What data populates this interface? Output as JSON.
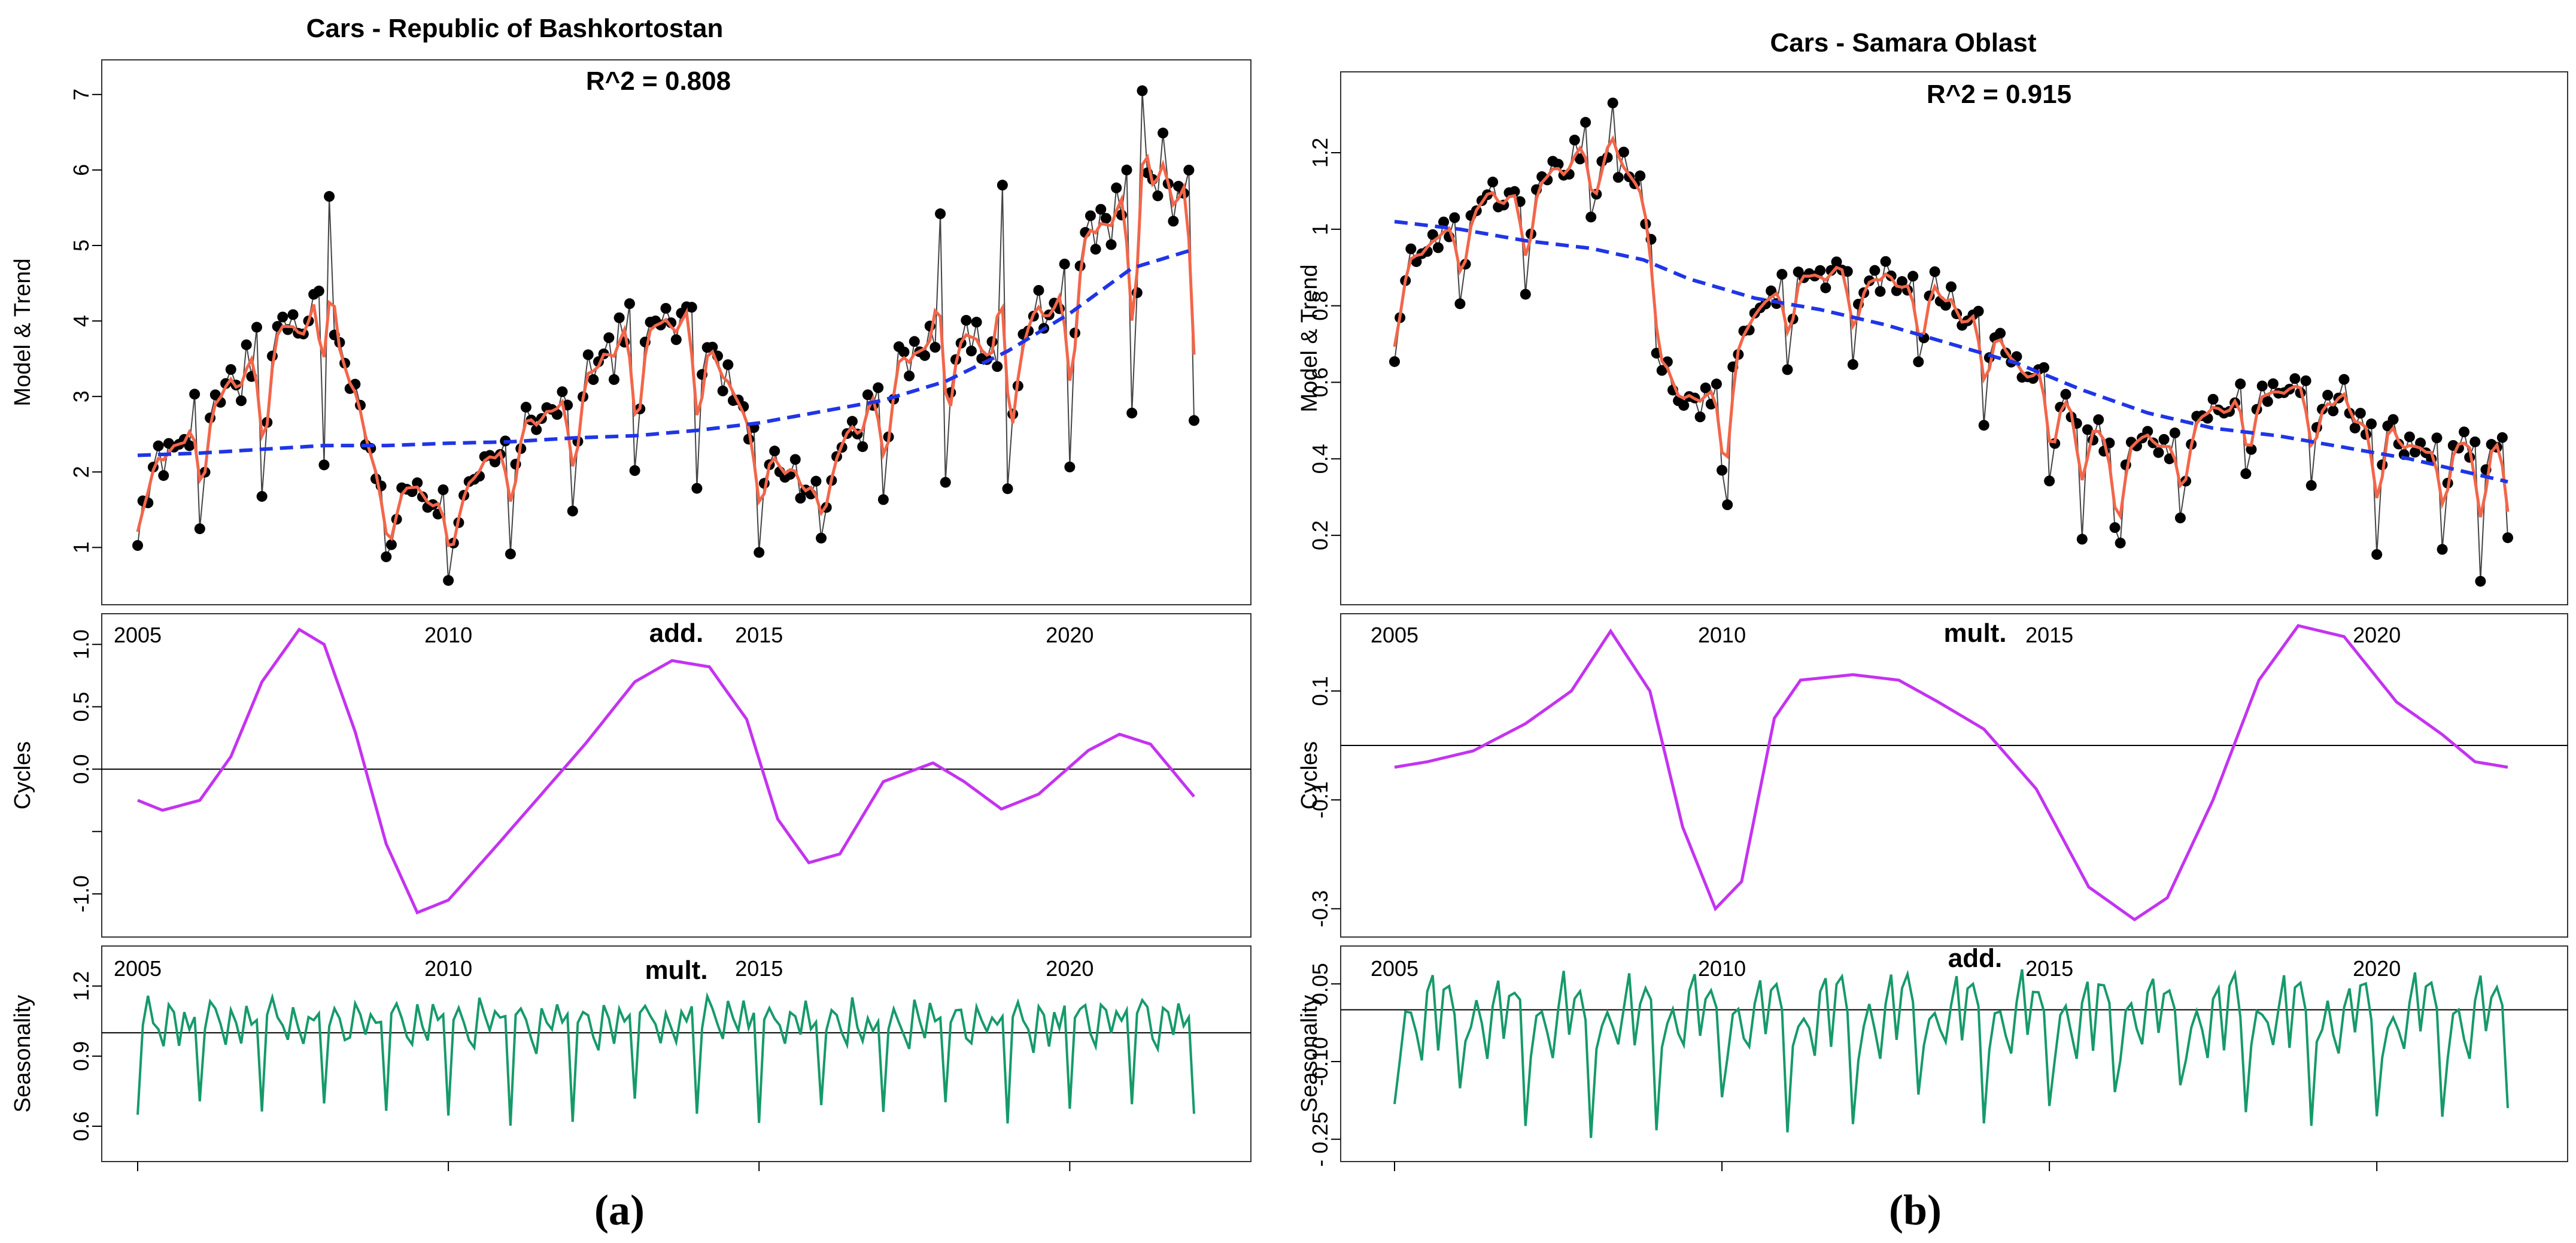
{
  "colors": {
    "observed_points": "#000000",
    "observed_line": "#444444",
    "model": "#f2664a",
    "trend": "#1f35e6",
    "cycles": "#c433f0",
    "seasonality": "#169a6a",
    "reference": "#000000"
  },
  "chart_data": [
    {
      "panel_label": "(a)",
      "type": "line",
      "title": "Cars - Republic of Bashkortostan",
      "r2_text": "R^2 = 0.808",
      "x_ticks": [
        "2005",
        "2010",
        "2015",
        "2020"
      ],
      "xlim": [
        2005,
        2022
      ],
      "subplots": [
        {
          "name": "model-trend",
          "ylabel": "Model & Trend",
          "ylim": [
            0.4,
            7.3
          ],
          "yticks": [
            1,
            2,
            3,
            4,
            5,
            6,
            7
          ],
          "trend": [
            [
              2005,
              2.22
            ],
            [
              2006,
              2.25
            ],
            [
              2007,
              2.3
            ],
            [
              2008,
              2.35
            ],
            [
              2009,
              2.35
            ],
            [
              2010,
              2.38
            ],
            [
              2011,
              2.4
            ],
            [
              2012,
              2.45
            ],
            [
              2013,
              2.48
            ],
            [
              2014,
              2.55
            ],
            [
              2015,
              2.65
            ],
            [
              2016,
              2.8
            ],
            [
              2017,
              2.95
            ],
            [
              2018,
              3.2
            ],
            [
              2019,
              3.6
            ],
            [
              2020,
              4.1
            ],
            [
              2021,
              4.7
            ],
            [
              2022,
              4.95
            ]
          ],
          "observed_annual_profile": [
            [
              2005,
              1.6
            ],
            [
              2006,
              2.5
            ],
            [
              2007,
              3.3
            ],
            [
              2008,
              3.9
            ],
            [
              2009,
              1.5
            ],
            [
              2010,
              1.3
            ],
            [
              2011,
              2.2
            ],
            [
              2012,
              2.7
            ],
            [
              2013,
              3.6
            ],
            [
              2014,
              3.8
            ],
            [
              2015,
              2.0
            ],
            [
              2016,
              1.7
            ],
            [
              2017,
              2.8
            ],
            [
              2018,
              3.5
            ],
            [
              2019,
              3.1
            ],
            [
              2020,
              4.2
            ],
            [
              2021,
              5.3
            ],
            [
              2022,
              5.3
            ]
          ],
          "peaks": [
            [
              2008.05,
              5.65
            ],
            [
              2021.15,
              7.05
            ],
            [
              2018.9,
              5.8
            ],
            [
              2017.9,
              5.42
            ],
            [
              2020.9,
              6.0
            ]
          ]
        },
        {
          "name": "cycles",
          "label": "add.",
          "ylabel": "Cycles",
          "ylim": [
            -1.25,
            1.15
          ],
          "yticks": [
            -1.0,
            -0.5,
            0.0,
            0.5,
            1.0
          ],
          "ytick_labels": [
            "-1.0",
            "",
            "0.0",
            "0.5",
            "1.0"
          ],
          "reference": 0.0,
          "values": [
            [
              2005,
              -0.25
            ],
            [
              2005.4,
              -0.33
            ],
            [
              2006,
              -0.25
            ],
            [
              2006.5,
              0.1
            ],
            [
              2007,
              0.7
            ],
            [
              2007.6,
              1.12
            ],
            [
              2008,
              1.0
            ],
            [
              2008.5,
              0.3
            ],
            [
              2009,
              -0.6
            ],
            [
              2009.5,
              -1.15
            ],
            [
              2010,
              -1.05
            ],
            [
              2010.8,
              -0.6
            ],
            [
              2011.5,
              -0.2
            ],
            [
              2012.2,
              0.2
            ],
            [
              2013,
              0.7
            ],
            [
              2013.6,
              0.87
            ],
            [
              2014.2,
              0.82
            ],
            [
              2014.8,
              0.4
            ],
            [
              2015.3,
              -0.4
            ],
            [
              2015.8,
              -0.75
            ],
            [
              2016.3,
              -0.68
            ],
            [
              2017,
              -0.1
            ],
            [
              2017.8,
              0.05
            ],
            [
              2018.3,
              -0.1
            ],
            [
              2018.9,
              -0.32
            ],
            [
              2019.5,
              -0.2
            ],
            [
              2020.3,
              0.15
            ],
            [
              2020.8,
              0.28
            ],
            [
              2021.3,
              0.2
            ],
            [
              2022,
              -0.22
            ]
          ]
        },
        {
          "name": "seasonality",
          "label": "mult.",
          "ylabel": "Seasonality",
          "ylim": [
            0.5,
            1.32
          ],
          "yticks": [
            0.6,
            0.9,
            1.2
          ],
          "ytick_labels": [
            "0.6",
            "0.9",
            "1.2"
          ],
          "reference": 1.0
        }
      ]
    },
    {
      "panel_label": "(b)",
      "type": "line",
      "title": "Cars - Samara Oblast",
      "r2_text": "R^2 = 0.915",
      "x_ticks": [
        "2005",
        "2010",
        "2015",
        "2020"
      ],
      "xlim": [
        2005,
        2022
      ],
      "subplots": [
        {
          "name": "model-trend",
          "ylabel": "Model & Trend",
          "ylim": [
            0.05,
            1.38
          ],
          "yticks": [
            0.2,
            0.4,
            0.6,
            0.8,
            1.0,
            1.2
          ],
          "trend": [
            [
              2005,
              1.02
            ],
            [
              2006,
              1.0
            ],
            [
              2007,
              0.97
            ],
            [
              2008,
              0.95
            ],
            [
              2008.8,
              0.92
            ],
            [
              2009.5,
              0.87
            ],
            [
              2010.5,
              0.82
            ],
            [
              2011.5,
              0.79
            ],
            [
              2012.5,
              0.75
            ],
            [
              2013.5,
              0.7
            ],
            [
              2014.5,
              0.65
            ],
            [
              2015.5,
              0.58
            ],
            [
              2016.5,
              0.52
            ],
            [
              2017.5,
              0.48
            ],
            [
              2018.5,
              0.46
            ],
            [
              2019.5,
              0.43
            ],
            [
              2020.5,
              0.4
            ],
            [
              2021.5,
              0.36
            ],
            [
              2022,
              0.34
            ]
          ],
          "observed_annual_profile": [
            [
              2005,
              0.8
            ],
            [
              2006,
              1.0
            ],
            [
              2007,
              1.05
            ],
            [
              2008,
              1.2
            ],
            [
              2008.8,
              1.05
            ],
            [
              2009.3,
              0.48
            ],
            [
              2010,
              0.55
            ],
            [
              2011,
              0.85
            ],
            [
              2012,
              0.85
            ],
            [
              2013,
              0.82
            ],
            [
              2014,
              0.7
            ],
            [
              2015,
              0.55
            ],
            [
              2016,
              0.4
            ],
            [
              2017,
              0.4
            ],
            [
              2018,
              0.52
            ],
            [
              2019,
              0.55
            ],
            [
              2020,
              0.45
            ],
            [
              2021,
              0.38
            ],
            [
              2022,
              0.4
            ]
          ],
          "peaks": [
            [
              2008.3,
              1.33
            ]
          ],
          "troughs": [
            [
              2010.1,
              0.28
            ],
            [
              2015.5,
              0.19
            ],
            [
              2016.1,
              0.18
            ],
            [
              2020,
              0.15
            ],
            [
              2021.6,
              0.08
            ]
          ]
        },
        {
          "name": "cycles",
          "label": "mult.",
          "ylabel": "Cycles",
          "ylim": [
            -0.33,
            0.22
          ],
          "yticks": [
            -0.3,
            -0.1,
            0.1
          ],
          "ytick_labels": [
            "-0.3",
            "-0.1",
            "0.1"
          ],
          "reference": 0.0,
          "values": [
            [
              2005,
              -0.04
            ],
            [
              2005.5,
              -0.03
            ],
            [
              2006.2,
              -0.01
            ],
            [
              2007,
              0.04
            ],
            [
              2007.7,
              0.1
            ],
            [
              2008.3,
              0.21
            ],
            [
              2008.9,
              0.1
            ],
            [
              2009.4,
              -0.15
            ],
            [
              2009.9,
              -0.3
            ],
            [
              2010.3,
              -0.25
            ],
            [
              2010.8,
              0.05
            ],
            [
              2011.2,
              0.12
            ],
            [
              2012,
              0.13
            ],
            [
              2012.7,
              0.12
            ],
            [
              2013.3,
              0.08
            ],
            [
              2014,
              0.03
            ],
            [
              2014.8,
              -0.08
            ],
            [
              2015.6,
              -0.26
            ],
            [
              2016.3,
              -0.32
            ],
            [
              2016.8,
              -0.28
            ],
            [
              2017.5,
              -0.1
            ],
            [
              2018.2,
              0.12
            ],
            [
              2018.8,
              0.22
            ],
            [
              2019.5,
              0.2
            ],
            [
              2020.3,
              0.08
            ],
            [
              2021,
              0.02
            ],
            [
              2021.5,
              -0.03
            ],
            [
              2022,
              -0.04
            ]
          ]
        },
        {
          "name": "seasonality",
          "label": "add.",
          "ylabel": "Seasonality",
          "ylim": [
            -0.27,
            0.1
          ],
          "yticks": [
            -0.25,
            -0.1,
            0.05
          ],
          "ytick_labels": [
            "- 0.25",
            "-0.10",
            "0.05"
          ],
          "reference": 0.0
        }
      ]
    }
  ]
}
